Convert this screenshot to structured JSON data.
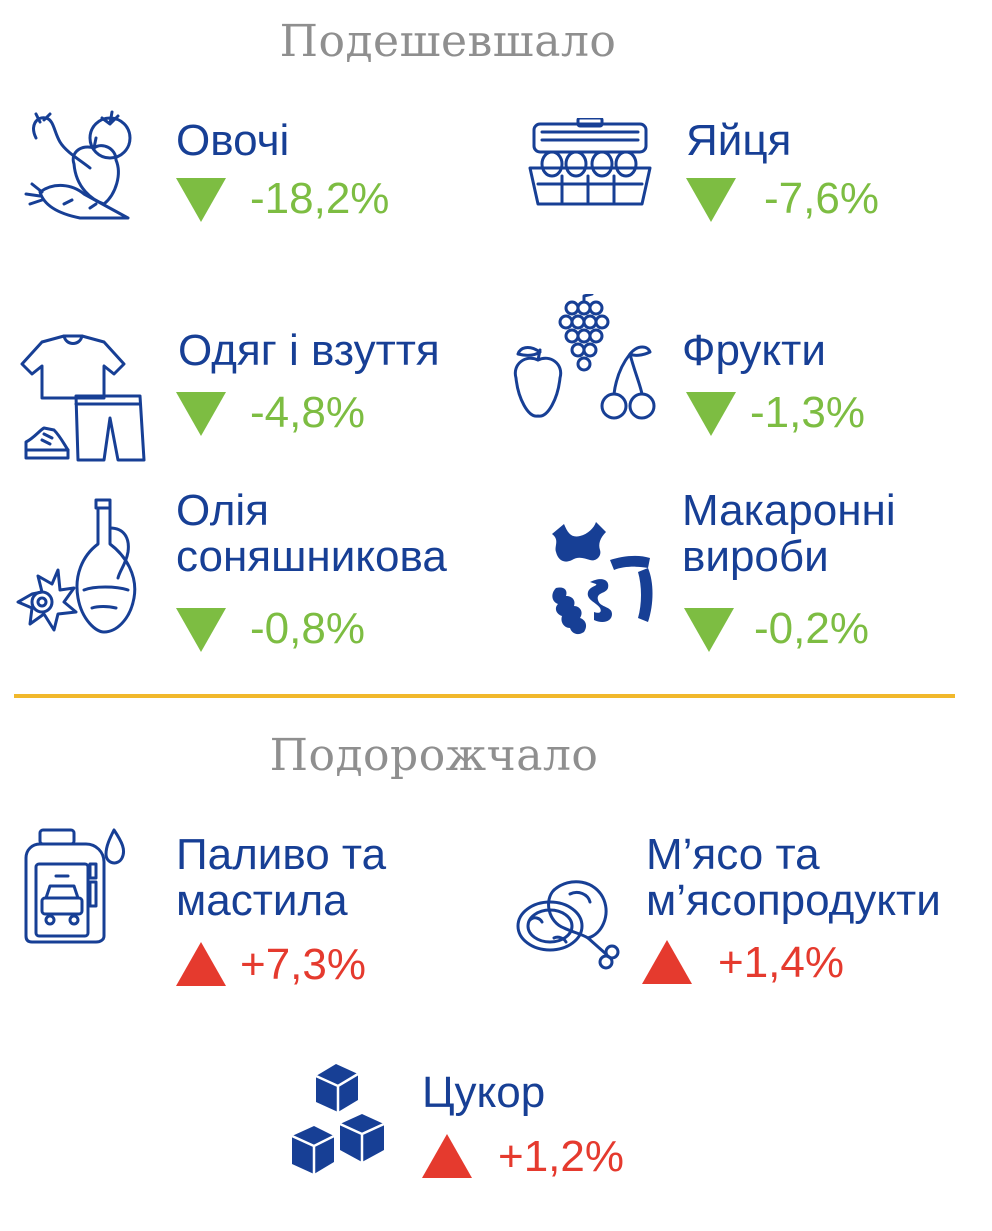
{
  "sections": {
    "cheaper_title": "Подешевшало",
    "pricier_title": "Подорожчало"
  },
  "colors": {
    "label": "#173f95",
    "decrease": "#7dbd42",
    "increase": "#e53a2e",
    "divider": "#f1b82b",
    "section_title": "#8f8f8f"
  },
  "cheaper": [
    {
      "name": "Овочі",
      "change": "-18,2%",
      "icon": "vegetables-icon"
    },
    {
      "name": "Яйця",
      "change": "-7,6%",
      "icon": "egg-carton-icon"
    },
    {
      "name": "Одяг і взуття",
      "change": "-4,8%",
      "icon": "clothes-icon"
    },
    {
      "name": "Фрукти",
      "change": "-1,3%",
      "icon": "fruits-icon"
    },
    {
      "name_line1": "Олія",
      "name_line2": "соняшникова",
      "change": "-0,8%",
      "icon": "sunflower-oil-icon"
    },
    {
      "name_line1": "Макаронні",
      "name_line2": "вироби",
      "change": "-0,2%",
      "icon": "pasta-icon"
    }
  ],
  "pricier": [
    {
      "name_line1": "Паливо та",
      "name_line2": "мастила",
      "change": "+7,3%",
      "icon": "fuel-canister-icon"
    },
    {
      "name_line1": "М’ясо та",
      "name_line2": "м’ясопродукти",
      "change": "+1,4%",
      "icon": "meat-icon"
    },
    {
      "name": "Цукор",
      "change": "+1,2%",
      "icon": "sugar-cubes-icon"
    }
  ]
}
